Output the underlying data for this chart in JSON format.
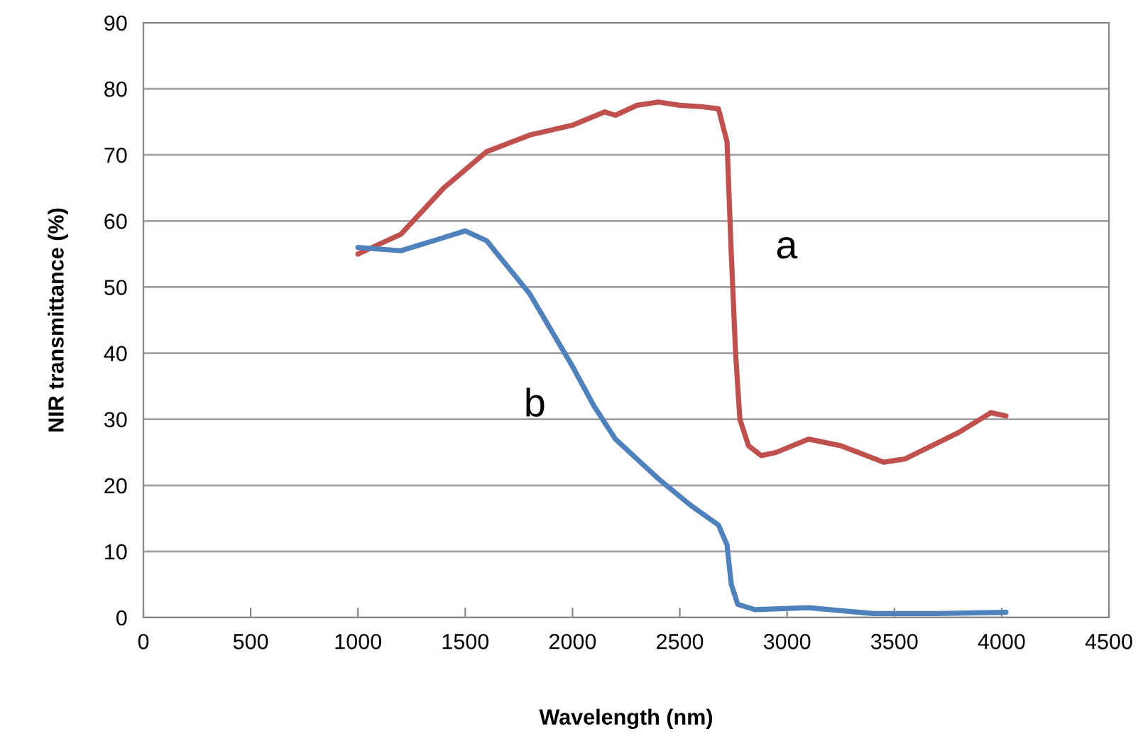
{
  "chart_data": {
    "type": "line",
    "xlabel": "Wavelength (nm)",
    "ylabel": "NIR transmittance (%)",
    "xlim": [
      0,
      4500
    ],
    "xticks": [
      0,
      500,
      1000,
      1500,
      2000,
      2500,
      3000,
      3500,
      4000,
      4500
    ],
    "ylim": [
      0,
      90
    ],
    "yticks": [
      0,
      10,
      20,
      30,
      40,
      50,
      60,
      70,
      80,
      90
    ],
    "grid": "y",
    "series": [
      {
        "name": "a",
        "color": "#c0504d",
        "x": [
          1000,
          1200,
          1400,
          1600,
          1800,
          2000,
          2150,
          2200,
          2300,
          2400,
          2500,
          2600,
          2680,
          2720,
          2740,
          2760,
          2780,
          2820,
          2880,
          2950,
          3100,
          3250,
          3450,
          3550,
          3800,
          3950,
          4020
        ],
        "values": [
          55,
          58,
          65,
          70.5,
          73,
          74.5,
          76.5,
          76,
          77.5,
          78,
          77.5,
          77.3,
          77,
          72,
          55,
          40,
          30,
          26,
          24.5,
          25,
          27,
          26,
          23.5,
          24,
          28,
          31,
          30.5
        ]
      },
      {
        "name": "b",
        "color": "#4f81bd",
        "x": [
          1000,
          1200,
          1400,
          1500,
          1600,
          1800,
          2000,
          2100,
          2200,
          2400,
          2550,
          2680,
          2720,
          2740,
          2770,
          2850,
          3100,
          3400,
          3700,
          4020
        ],
        "values": [
          56,
          55.5,
          57.5,
          58.5,
          57,
          49,
          38,
          32,
          27,
          21,
          17,
          14,
          11,
          5,
          2,
          1.2,
          1.5,
          0.6,
          0.6,
          0.8
        ]
      }
    ]
  }
}
